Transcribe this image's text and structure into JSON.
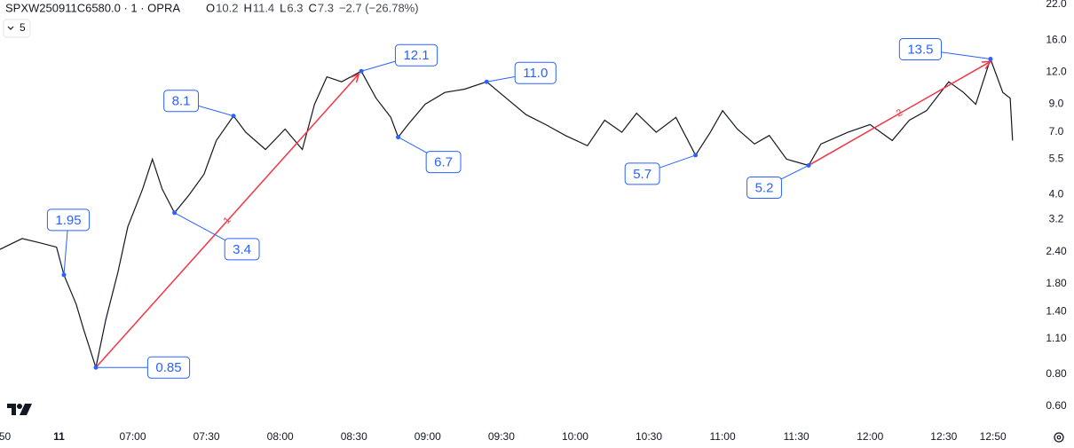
{
  "header": {
    "symbol": "SPXW250911C6580.0 · 1 · OPRA",
    "ohlc": [
      {
        "key": "O",
        "value": "10.2"
      },
      {
        "key": "H",
        "value": "11.4"
      },
      {
        "key": "L",
        "value": "6.3"
      },
      {
        "key": "C",
        "value": "7.3"
      }
    ],
    "change": "−2.7 (−26.78%)",
    "interval_button": "5"
  },
  "chart_data": {
    "type": "line",
    "color": "#131722",
    "log_scale": true,
    "x": [
      366,
      375,
      382,
      389,
      392,
      397,
      400,
      405,
      409,
      414,
      418,
      424,
      428,
      432,
      437,
      443,
      449,
      454,
      461,
      466,
      474,
      482,
      489,
      494,
      499,
      505,
      513,
      519,
      525,
      528,
      532,
      539,
      547,
      555,
      564,
      572,
      580,
      588,
      596,
      605,
      612,
      619,
      625,
      633,
      641,
      649,
      655,
      660,
      666,
      673,
      679,
      686,
      695,
      700,
      711,
      720,
      729,
      736,
      743,
      752,
      758,
      763,
      769,
      774,
      777,
      778
    ],
    "values": [
      2.45,
      2.7,
      2.6,
      2.5,
      1.95,
      1.5,
      1.2,
      0.85,
      1.3,
      2.0,
      3.0,
      4.2,
      5.5,
      4.2,
      3.4,
      4.0,
      4.8,
      6.5,
      8.1,
      7.0,
      6.0,
      7.2,
      6.0,
      9.0,
      11.5,
      11.0,
      12.1,
      9.5,
      8.0,
      6.7,
      7.5,
      9.0,
      10.0,
      10.3,
      11.0,
      9.5,
      8.2,
      7.5,
      6.8,
      6.2,
      7.8,
      7.0,
      8.3,
      7.0,
      8.0,
      5.7,
      7.0,
      8.5,
      7.2,
      6.3,
      6.8,
      5.5,
      5.2,
      6.3,
      7.0,
      7.5,
      6.5,
      7.8,
      8.5,
      11.0,
      10.0,
      9.0,
      13.5,
      10.0,
      9.5,
      6.5
    ],
    "xlim": [
      366,
      786
    ],
    "ylim": [
      0.504,
      22.9
    ],
    "xticks": [
      {
        "value": 368,
        "label": "50"
      },
      {
        "value": 390,
        "label": "11"
      },
      {
        "value": 420,
        "label": "07:00"
      },
      {
        "value": 450,
        "label": "07:30"
      },
      {
        "value": 480,
        "label": "08:00"
      },
      {
        "value": 510,
        "label": "08:30"
      },
      {
        "value": 540,
        "label": "09:00"
      },
      {
        "value": 570,
        "label": "09:30"
      },
      {
        "value": 600,
        "label": "10:00"
      },
      {
        "value": 630,
        "label": "10:30"
      },
      {
        "value": 660,
        "label": "11:00"
      },
      {
        "value": 690,
        "label": "11:30"
      },
      {
        "value": 720,
        "label": "12:00"
      },
      {
        "value": 750,
        "label": "12:30"
      },
      {
        "value": 770,
        "label": "12:50"
      }
    ],
    "yticks": [
      {
        "value": 0.6,
        "label": "0.60"
      },
      {
        "value": 0.8,
        "label": "0.80"
      },
      {
        "value": 1.1,
        "label": "1.10"
      },
      {
        "value": 1.4,
        "label": "1.40"
      },
      {
        "value": 1.8,
        "label": "1.80"
      },
      {
        "value": 2.4,
        "label": "2.40"
      },
      3.2,
      {
        "value": 4,
        "label": "4.0"
      },
      5.5,
      {
        "value": 7,
        "label": "7.0"
      },
      {
        "value": 9,
        "label": "9.0"
      },
      {
        "value": 12,
        "label": "12.0"
      },
      {
        "value": 16,
        "label": "16.0"
      },
      {
        "value": 22,
        "label": "22.0"
      }
    ],
    "annotations": [
      {
        "x": 392,
        "value": 1.95
      },
      {
        "x": 405,
        "value": 0.85
      },
      {
        "x": 461,
        "value": 8.1
      },
      {
        "x": 437,
        "value": 3.4
      },
      {
        "x": 513,
        "value": 12.1
      },
      {
        "x": 528,
        "value": 6.7
      },
      {
        "x": 564,
        "value": {
          "value": 11,
          "label": "11.0"
        }
      },
      {
        "x": 649,
        "value": 5.7
      },
      {
        "x": 695,
        "value": 5.2
      },
      {
        "x": 769,
        "value": 13.5
      }
    ],
    "annotation_color": "#2962ff",
    "arrows": [
      {
        "label": "1",
        "x": [
          405,
          512
        ],
        "values": [
          0.85,
          11.8
        ]
      },
      {
        "label": "2",
        "x": [
          695,
          769
        ],
        "values": [
          5.2,
          13.2
        ]
      }
    ],
    "arrow_color": "#f23645"
  }
}
